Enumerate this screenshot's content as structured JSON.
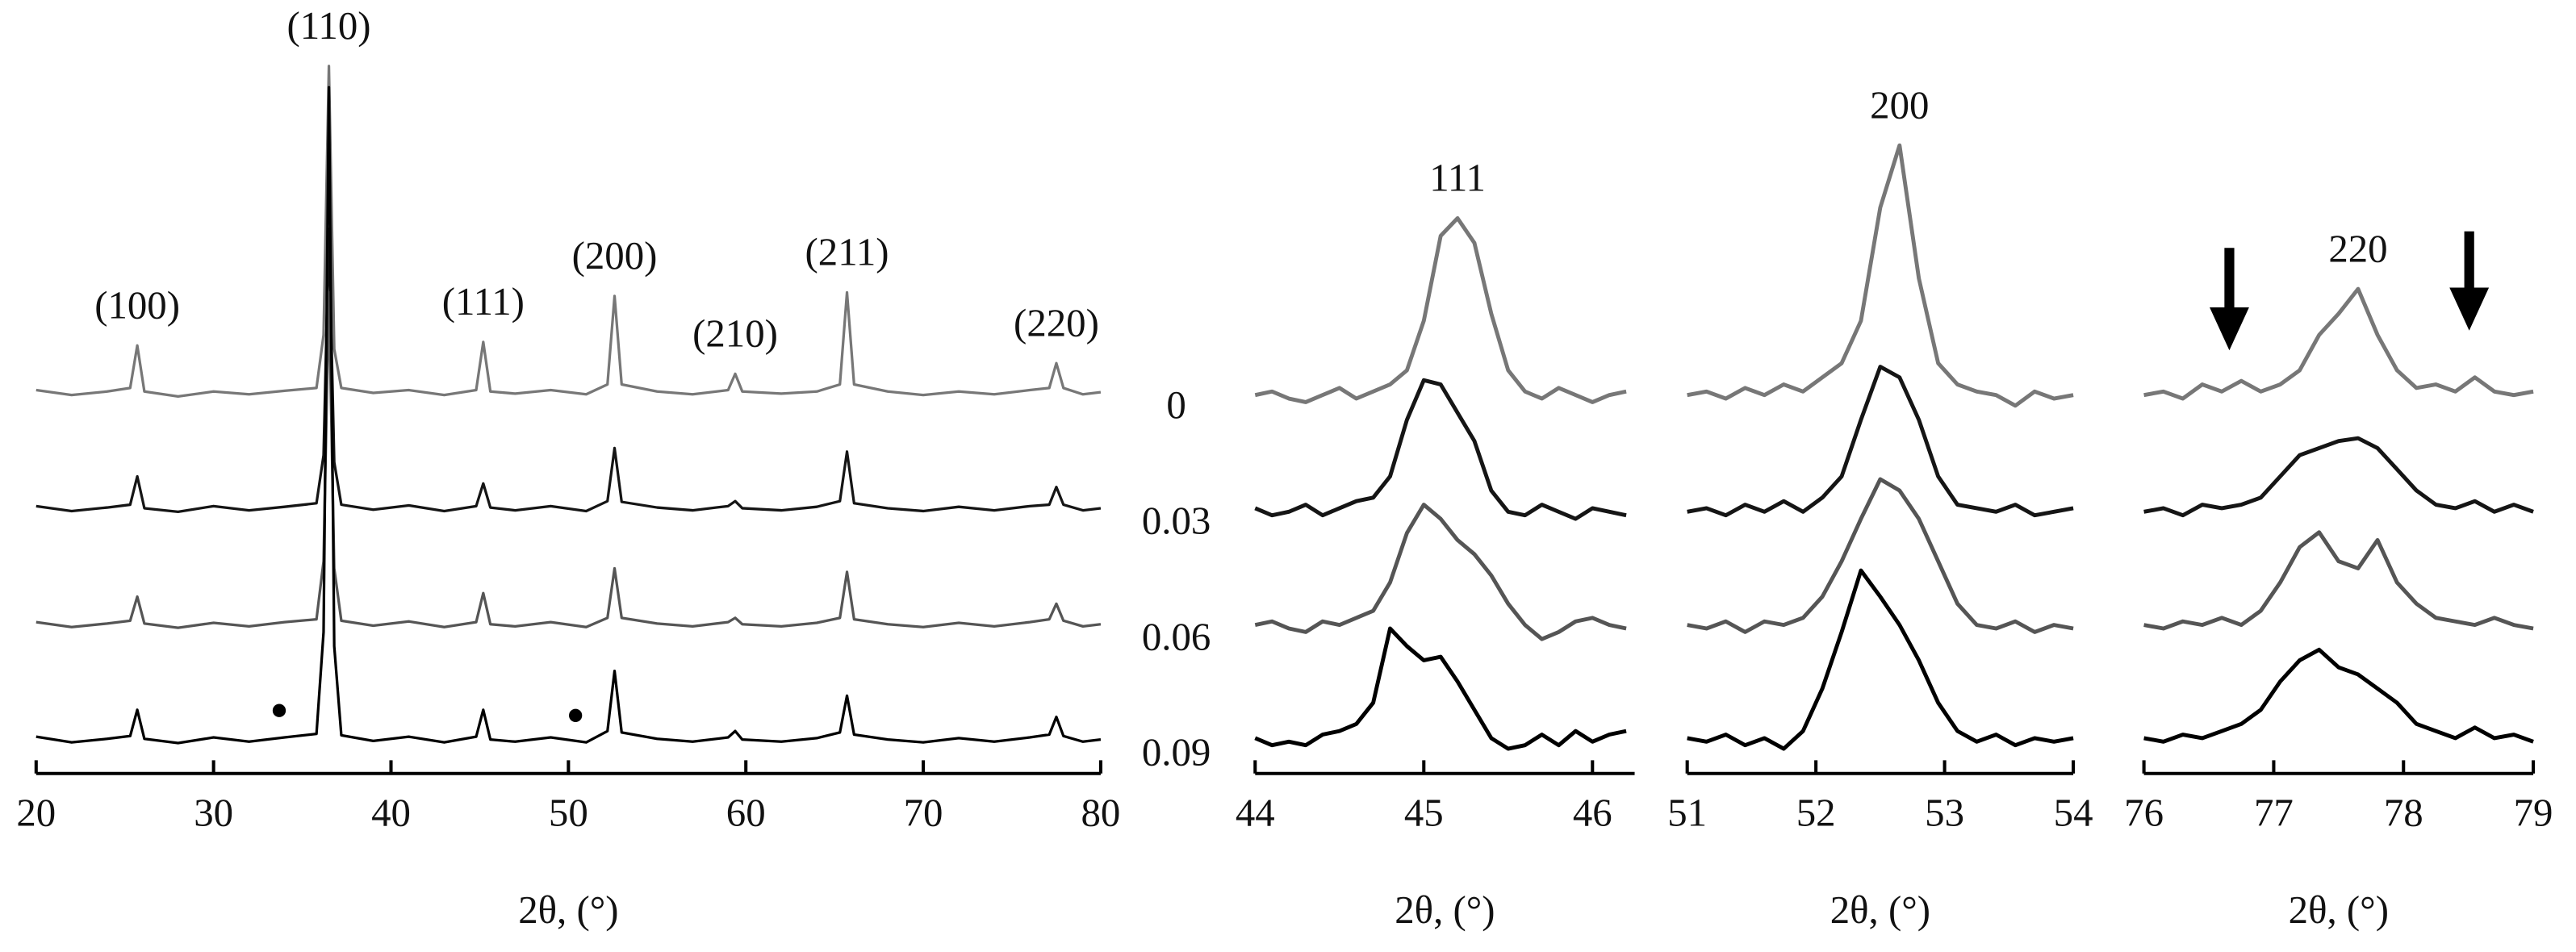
{
  "chart_data": [
    {
      "type": "line",
      "xlabel": "2θ, (°)",
      "xlim": [
        20,
        80
      ],
      "xticks": [
        20,
        30,
        40,
        50,
        60,
        70,
        80
      ],
      "ylim": [
        0,
        100
      ],
      "x": [
        20,
        22,
        24,
        25.3,
        25.7,
        26.1,
        28,
        30,
        32,
        34,
        35.8,
        36.2,
        36.5,
        36.8,
        37.2,
        39,
        41,
        43,
        44.8,
        45.2,
        45.6,
        47,
        49,
        51,
        52.2,
        52.6,
        53,
        55,
        57,
        59,
        59.4,
        59.8,
        62,
        64,
        65.3,
        65.7,
        66.1,
        68,
        70,
        72,
        74,
        76,
        77.1,
        77.5,
        77.9,
        79,
        80
      ],
      "series": [
        {
          "name": "0",
          "color": "#777777",
          "values": [
            54.2,
            53.5,
            54,
            54.5,
            60.5,
            54,
            53.3,
            54,
            53.6,
            54.1,
            54.5,
            62,
            100,
            60,
            54.5,
            53.8,
            54.2,
            53.5,
            54.2,
            61,
            54,
            53.7,
            54.2,
            53.6,
            55,
            67.5,
            55,
            54,
            53.6,
            54.2,
            56.5,
            54,
            53.7,
            54,
            55,
            68,
            55,
            54,
            53.5,
            54,
            53.6,
            54.2,
            54.5,
            58,
            54.5,
            53.6,
            53.9
          ]
        },
        {
          "name": "0.03",
          "color": "#151515",
          "values": [
            37.8,
            37.1,
            37.6,
            38,
            42,
            37.5,
            37,
            37.8,
            37.2,
            37.7,
            38.2,
            45,
            77,
            44,
            38,
            37.3,
            37.9,
            37.1,
            37.8,
            41,
            37.6,
            37.2,
            37.8,
            37.1,
            38.5,
            46,
            38.4,
            37.6,
            37.2,
            37.8,
            38.5,
            37.5,
            37.2,
            37.7,
            38.5,
            45.5,
            38.2,
            37.5,
            37.1,
            37.7,
            37.2,
            37.8,
            38,
            40.5,
            38,
            37.2,
            37.5
          ]
        },
        {
          "name": "0.06",
          "color": "#555555",
          "values": [
            21.4,
            20.7,
            21.2,
            21.6,
            25,
            21.2,
            20.6,
            21.3,
            20.8,
            21.4,
            21.8,
            30,
            68,
            29,
            21.6,
            20.9,
            21.5,
            20.7,
            21.4,
            25.5,
            21.1,
            20.8,
            21.4,
            20.7,
            22,
            29,
            22,
            21.2,
            20.8,
            21.4,
            22,
            21.1,
            20.8,
            21.3,
            22,
            28.5,
            21.8,
            21.1,
            20.7,
            21.3,
            20.8,
            21.4,
            21.8,
            24,
            21.6,
            20.8,
            21.1
          ]
        },
        {
          "name": "0.09",
          "color": "#000000",
          "values": [
            5.2,
            4.4,
            4.9,
            5.3,
            9,
            4.9,
            4.3,
            5.1,
            4.5,
            5.1,
            5.6,
            20,
            97,
            18,
            5.4,
            4.6,
            5.2,
            4.4,
            5.2,
            9,
            4.8,
            4.5,
            5.1,
            4.4,
            6,
            14.5,
            5.8,
            4.9,
            4.5,
            5.1,
            6,
            4.8,
            4.5,
            5,
            5.8,
            11,
            5.5,
            4.8,
            4.4,
            5,
            4.5,
            5.1,
            5.5,
            8,
            5.3,
            4.5,
            4.8
          ]
        }
      ],
      "markers": {
        "x": [
          33.7,
          50.4
        ],
        "values": [
          8.9,
          8.2
        ]
      },
      "peak_labels": [
        {
          "text": "(100)",
          "x": 25.7
        },
        {
          "text": "(110)",
          "x": 36.5
        },
        {
          "text": "(111)",
          "x": 45.2
        },
        {
          "text": "(200)",
          "x": 52.6
        },
        {
          "text": "(210)",
          "x": 59.4
        },
        {
          "text": "(211)",
          "x": 65.7
        },
        {
          "text": "(220)",
          "x": 77.5
        }
      ]
    },
    {
      "type": "line",
      "xlabel": "2θ, (°)",
      "xlim": [
        44,
        46.25
      ],
      "xticks": [
        44,
        45,
        46
      ],
      "ylim": [
        0,
        100
      ],
      "x": [
        44.0,
        44.1,
        44.2,
        44.3,
        44.4,
        44.5,
        44.6,
        44.7,
        44.8,
        44.9,
        45.0,
        45.1,
        45.2,
        45.3,
        45.4,
        45.5,
        45.6,
        45.7,
        45.8,
        45.9,
        46.0,
        46.1,
        46.2
      ],
      "series": [
        {
          "name": "0",
          "color": "#777777",
          "values": [
            53.5,
            54,
            53,
            52.5,
            53.5,
            54.5,
            53,
            54,
            55,
            57,
            64,
            76,
            78.5,
            75,
            65,
            57,
            54,
            53,
            54.5,
            53.5,
            52.5,
            53.5,
            54
          ]
        },
        {
          "name": "0.03",
          "color": "#151515",
          "values": [
            37.5,
            36.5,
            37,
            38,
            36.5,
            37.5,
            38.5,
            39,
            42,
            50,
            55.6,
            55,
            51,
            47,
            40,
            37,
            36.5,
            38,
            37,
            36,
            37.5,
            37,
            36.5
          ]
        },
        {
          "name": "0.06",
          "color": "#555555",
          "values": [
            21,
            21.5,
            20.5,
            20,
            21.5,
            21,
            22,
            23,
            27,
            34,
            38,
            36,
            33,
            31,
            28,
            24,
            21,
            19,
            20,
            21.5,
            22,
            21,
            20.5
          ]
        },
        {
          "name": "0.09",
          "color": "#000000",
          "values": [
            5,
            4,
            4.5,
            4,
            5.5,
            6,
            7,
            10,
            20.5,
            18,
            16,
            16.5,
            13,
            9,
            5,
            3.5,
            4,
            5.5,
            4,
            6,
            4.5,
            5.5,
            6
          ]
        }
      ],
      "peak_labels": [
        {
          "text": "111",
          "x": 45.2
        }
      ]
    },
    {
      "type": "line",
      "xlabel": "2θ, (°)",
      "xlim": [
        51,
        54
      ],
      "xticks": [
        51,
        52,
        53,
        54
      ],
      "ylim": [
        0,
        100
      ],
      "x": [
        51,
        51.15,
        51.3,
        51.45,
        51.6,
        51.75,
        51.9,
        52.05,
        52.2,
        52.35,
        52.5,
        52.65,
        52.8,
        52.95,
        53.1,
        53.25,
        53.4,
        53.55,
        53.7,
        53.85,
        54.0
      ],
      "series": [
        {
          "name": "0",
          "color": "#777777",
          "values": [
            53.5,
            54,
            53,
            54.5,
            53.5,
            55,
            54,
            56,
            58,
            64,
            80,
            88.8,
            70,
            58,
            55,
            54,
            53.5,
            52,
            54,
            53,
            53.5
          ]
        },
        {
          "name": "0.03",
          "color": "#151515",
          "values": [
            37,
            37.5,
            36.5,
            38,
            37,
            38.5,
            37,
            39,
            42,
            50,
            57.5,
            56,
            50,
            42,
            38,
            37.5,
            37,
            38,
            36.5,
            37,
            37.5
          ]
        },
        {
          "name": "0.06",
          "color": "#555555",
          "values": [
            21,
            20.5,
            21.5,
            20,
            21.5,
            21,
            22,
            25,
            30,
            36,
            41.6,
            40,
            36,
            30,
            24,
            21,
            20.5,
            21.5,
            20,
            21,
            20.5
          ]
        },
        {
          "name": "0.09",
          "color": "#000000",
          "values": [
            5,
            4.5,
            5.5,
            4,
            5,
            3.5,
            6,
            12,
            20,
            28.7,
            25,
            21,
            16,
            10,
            6,
            4.5,
            5.5,
            4,
            5,
            4.5,
            5
          ]
        }
      ],
      "peak_labels": [
        {
          "text": "200",
          "x": 52.65
        }
      ]
    },
    {
      "type": "line",
      "xlabel": "2θ, (°)",
      "xlim": [
        76,
        79
      ],
      "xticks": [
        76,
        77,
        78,
        79
      ],
      "ylim": [
        0,
        100
      ],
      "x": [
        76,
        76.15,
        76.3,
        76.45,
        76.6,
        76.75,
        76.9,
        77.05,
        77.2,
        77.35,
        77.5,
        77.65,
        77.8,
        77.95,
        78.1,
        78.25,
        78.4,
        78.55,
        78.7,
        78.85,
        79.0
      ],
      "series": [
        {
          "name": "0",
          "color": "#777777",
          "values": [
            53.5,
            54,
            53,
            55,
            54,
            55.5,
            54,
            55,
            57,
            62,
            65,
            68.5,
            62,
            57,
            54.5,
            55,
            54,
            56,
            54,
            53.5,
            54
          ]
        },
        {
          "name": "0.03",
          "color": "#151515",
          "values": [
            37,
            37.5,
            36.5,
            38,
            37.5,
            38,
            39,
            42,
            45,
            46,
            47,
            47.4,
            46,
            43,
            40,
            38,
            37.5,
            38.5,
            37,
            38,
            37
          ]
        },
        {
          "name": "0.06",
          "color": "#555555",
          "values": [
            21,
            20.5,
            21.5,
            21,
            22,
            21,
            23,
            27,
            32,
            34.1,
            30,
            29,
            33,
            27,
            24,
            22,
            21.5,
            21,
            22,
            21,
            20.5
          ]
        },
        {
          "name": "0.09",
          "color": "#000000",
          "values": [
            5,
            4.5,
            5.5,
            5,
            6,
            7,
            9,
            13,
            16,
            17.5,
            15,
            14,
            12,
            10,
            7,
            6,
            5,
            6.5,
            5,
            5.5,
            4.5
          ]
        }
      ],
      "peak_labels": [
        {
          "text": "220",
          "x": 77.65
        }
      ]
    }
  ]
}
